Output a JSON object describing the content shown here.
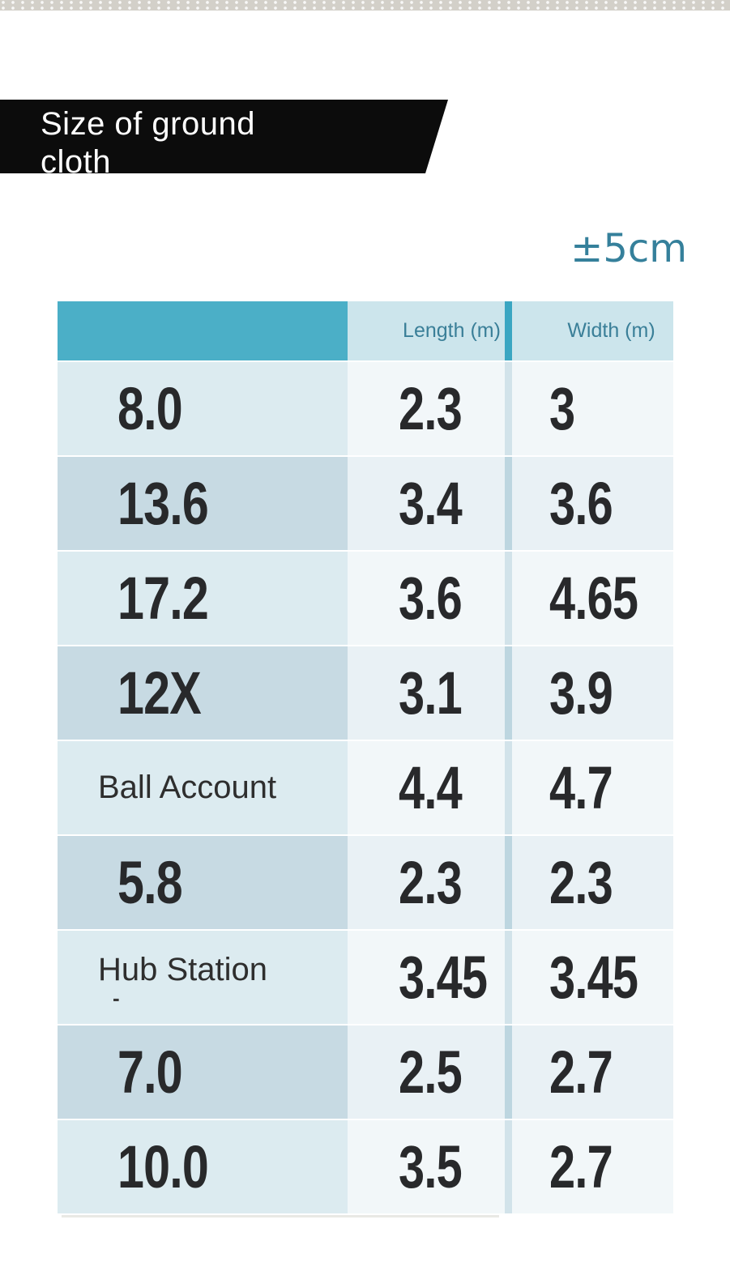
{
  "banner": {
    "title_line1": "Size of ground",
    "title_line2": "cloth"
  },
  "tolerance_label": "±5cm",
  "table": {
    "header": {
      "model": "",
      "length": "Length (m)",
      "width": "Width (m)"
    },
    "rows": [
      {
        "model": "8.0",
        "length": "2.3",
        "width": "3",
        "label_style": "big"
      },
      {
        "model": "13.6",
        "length": "3.4",
        "width": "3.6",
        "label_style": "big"
      },
      {
        "model": "17.2",
        "length": "3.6",
        "width": "4.65",
        "label_style": "big"
      },
      {
        "model": "12X",
        "length": "3.1",
        "width": "3.9",
        "label_style": "big"
      },
      {
        "model": "Ball Account",
        "length": "4.4",
        "width": "4.7",
        "label_style": "text"
      },
      {
        "model": "5.8",
        "length": "2.3",
        "width": "2.3",
        "label_style": "big"
      },
      {
        "model": "Hub Station",
        "note": "-",
        "length": "3.45",
        "width": "3.45",
        "label_style": "text"
      },
      {
        "model": "7.0",
        "length": "2.5",
        "width": "2.7",
        "label_style": "big"
      },
      {
        "model": "10.0",
        "length": "3.5",
        "width": "2.7",
        "label_style": "big"
      }
    ]
  },
  "chart_data": {
    "type": "table",
    "title": "Size of ground cloth",
    "annotation": "±5cm",
    "columns": [
      "",
      "Length (m)",
      "Width (m)"
    ],
    "rows": [
      [
        "8.0",
        "2.3",
        "3"
      ],
      [
        "13.6",
        "3.4",
        "3.6"
      ],
      [
        "17.2",
        "3.6",
        "4.65"
      ],
      [
        "12X",
        "3.1",
        "3.9"
      ],
      [
        "Ball Account",
        "4.4",
        "4.7"
      ],
      [
        "5.8",
        "2.3",
        "2.3"
      ],
      [
        "Hub Station",
        "3.45",
        "3.45"
      ],
      [
        "7.0",
        "2.5",
        "2.7"
      ],
      [
        "10.0",
        "3.5",
        "2.7"
      ]
    ]
  },
  "colors": {
    "header_teal": "#4bafc7",
    "header_light": "#cce5ec",
    "header_divider": "#3aa6c2",
    "header_text": "#3a7f98",
    "tolerance_text": "#35809b",
    "row_odd_label": "#dcebf0",
    "row_odd_data": "#f2f7f9",
    "row_even_label": "#c7dae3",
    "row_even_data": "#e9f1f5",
    "number_text": "#28292b",
    "banner_bg": "#0c0c0c",
    "banner_text": "#ffffff",
    "top_strip": "#d3d0c9"
  }
}
